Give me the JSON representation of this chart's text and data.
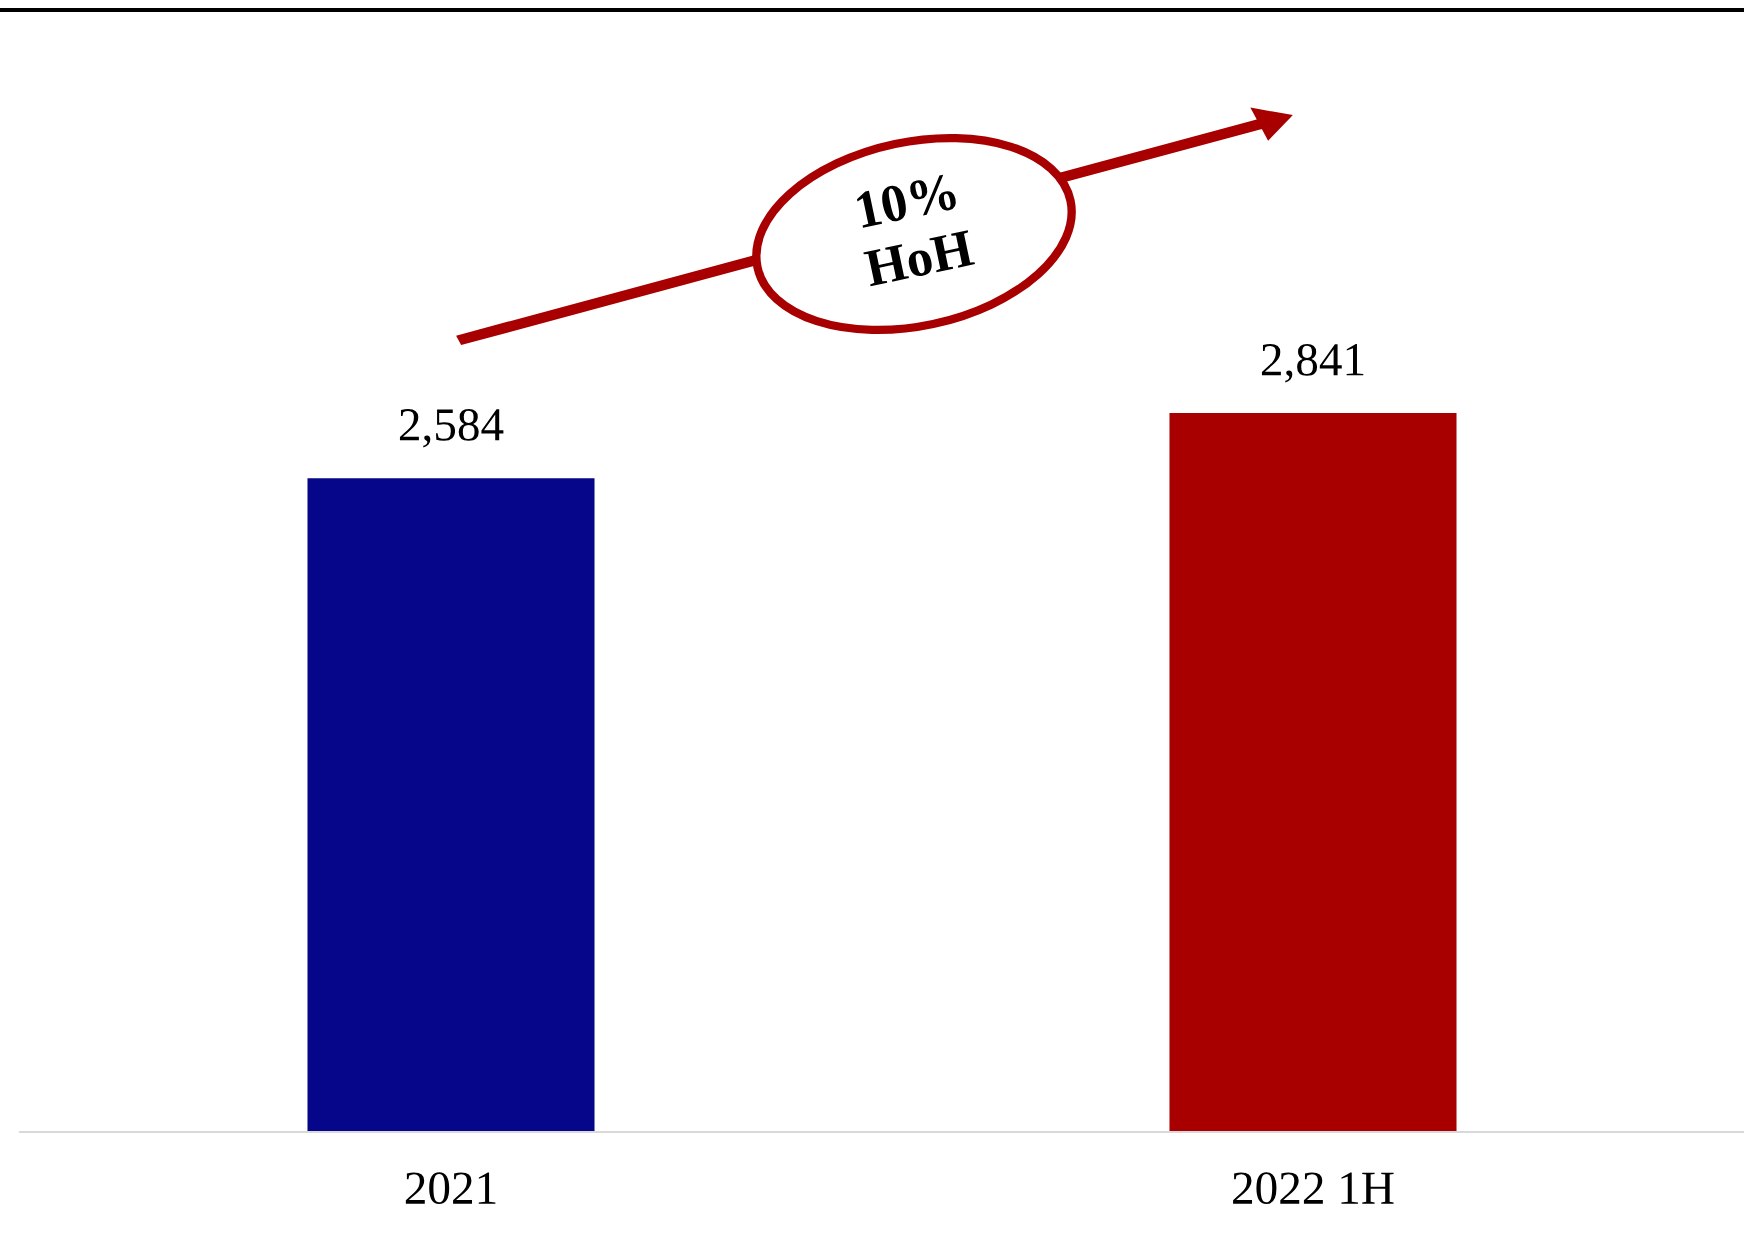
{
  "chart_data": {
    "type": "bar",
    "categories": [
      "2021",
      "2022 1H"
    ],
    "values": [
      2584,
      2841
    ],
    "colors": [
      "#06068a",
      "#a80000"
    ],
    "value_labels": [
      "2,584",
      "2,841"
    ],
    "grid": false,
    "tick_labels": "x",
    "annotations": [
      "10%\nHoH"
    ]
  }
}
